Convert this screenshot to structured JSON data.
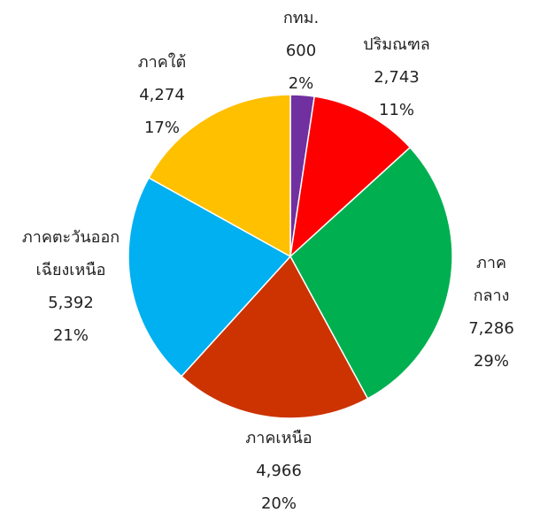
{
  "chart_data": {
    "type": "pie",
    "categories": [
      "กทม.",
      "ปริมณฑล",
      "ภาคกลาง",
      "ภาคเหนือ",
      "ภาคตะวันออก\nเฉียงเหนือ",
      "ภาคใต้"
    ],
    "values": [
      600,
      2743,
      7286,
      4966,
      5392,
      4274
    ],
    "value_labels": [
      "600",
      "2,743",
      "7,286",
      "4,966",
      "5,392",
      "4,274"
    ],
    "percents": [
      2,
      11,
      29,
      20,
      21,
      17
    ],
    "percent_labels": [
      "2%",
      "11%",
      "29%",
      "20%",
      "21%",
      "17%"
    ],
    "colors": [
      "#7030a0",
      "#ff0000",
      "#00b050",
      "#cc3300",
      "#00b0f0",
      "#ffc000"
    ]
  }
}
